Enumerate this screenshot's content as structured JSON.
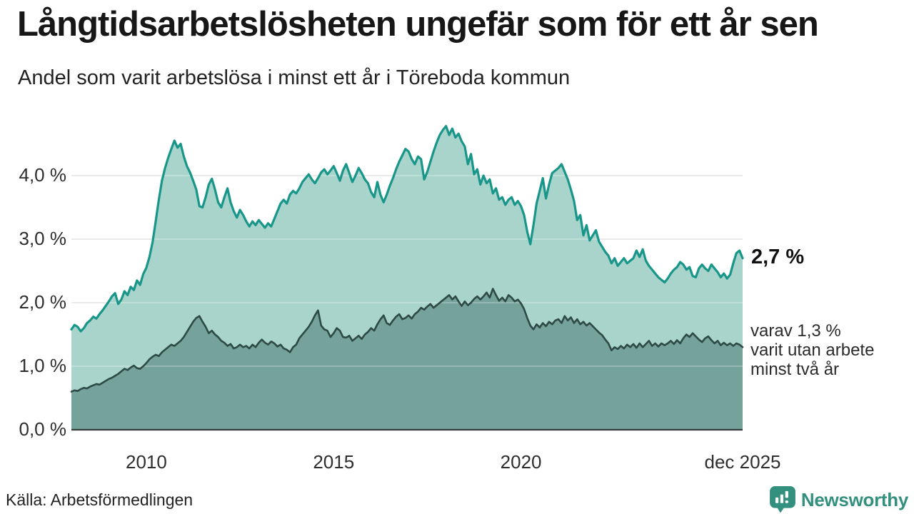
{
  "header": {
    "title": "Långtidsarbetslösheten ungefär som för ett år sen",
    "subtitle": "Andel som varit arbetslösa i minst ett år i Töreboda kommun"
  },
  "chart_data": {
    "type": "area",
    "title": "Långtidsarbetslösheten ungefär som för ett år sen",
    "subtitle": "Andel som varit arbetslösa i minst ett år i Töreboda kommun",
    "unit": "%",
    "frequency": "monthly",
    "x_range": [
      "2008-01",
      "2025-12"
    ],
    "ylim": [
      0,
      4.9
    ],
    "grid": "horizontal",
    "legend_position": "none",
    "colors": {
      "grid": "#dadada",
      "grid_overlay": "rgba(255,255,255,0.33)",
      "baseline": "#35403d"
    },
    "y_ticks": [
      {
        "label": "0,0 %",
        "value": 0.0
      },
      {
        "label": "1,0 %",
        "value": 1.0
      },
      {
        "label": "2,0 %",
        "value": 2.0
      },
      {
        "label": "3,0 %",
        "value": 3.0
      },
      {
        "label": "4,0 %",
        "value": 4.0
      }
    ],
    "x_ticks": [
      {
        "label": "2010",
        "month_index": 24
      },
      {
        "label": "2015",
        "month_index": 84
      },
      {
        "label": "2020",
        "month_index": 144
      },
      {
        "label": "dec 2025",
        "month_index": 215
      }
    ],
    "series": [
      {
        "name": "Andel arbetslösa minst ett år",
        "color": "#189689",
        "fill": "#a9d4cc",
        "end_value": 2.7,
        "values": [
          1.58,
          1.65,
          1.62,
          1.55,
          1.6,
          1.68,
          1.72,
          1.78,
          1.75,
          1.82,
          1.88,
          1.95,
          2.02,
          2.1,
          2.15,
          1.98,
          2.05,
          2.18,
          2.12,
          2.25,
          2.2,
          2.35,
          2.28,
          2.45,
          2.55,
          2.72,
          2.95,
          3.28,
          3.62,
          3.92,
          4.12,
          4.28,
          4.42,
          4.55,
          4.44,
          4.5,
          4.3,
          4.15,
          4.05,
          3.92,
          3.78,
          3.52,
          3.5,
          3.66,
          3.86,
          3.95,
          3.78,
          3.58,
          3.5,
          3.66,
          3.8,
          3.58,
          3.44,
          3.34,
          3.46,
          3.38,
          3.28,
          3.2,
          3.28,
          3.22,
          3.3,
          3.24,
          3.18,
          3.25,
          3.2,
          3.32,
          3.44,
          3.56,
          3.62,
          3.56,
          3.7,
          3.76,
          3.72,
          3.8,
          3.9,
          3.96,
          4.02,
          3.94,
          3.88,
          3.96,
          4.05,
          4.1,
          4.02,
          4.08,
          4.15,
          4.04,
          3.92,
          4.08,
          4.18,
          4.04,
          3.9,
          4.0,
          4.12,
          4.04,
          3.94,
          3.88,
          3.74,
          3.66,
          3.9,
          3.7,
          3.58,
          3.7,
          3.84,
          3.96,
          4.1,
          4.22,
          4.32,
          4.42,
          4.38,
          4.26,
          4.18,
          4.3,
          4.26,
          3.94,
          4.06,
          4.22,
          4.38,
          4.52,
          4.64,
          4.72,
          4.78,
          4.64,
          4.74,
          4.6,
          4.66,
          4.54,
          4.46,
          4.18,
          4.34,
          4.02,
          4.1,
          3.86,
          4.0,
          3.88,
          3.94,
          3.72,
          3.8,
          3.62,
          3.66,
          3.54,
          3.62,
          3.66,
          3.54,
          3.6,
          3.52,
          3.38,
          3.12,
          2.92,
          3.22,
          3.56,
          3.76,
          3.96,
          3.64,
          3.86,
          4.04,
          4.08,
          4.12,
          4.18,
          4.06,
          3.94,
          3.78,
          3.6,
          3.3,
          3.38,
          3.06,
          3.22,
          2.98,
          3.06,
          3.14,
          2.96,
          2.88,
          2.8,
          2.74,
          2.62,
          2.7,
          2.58,
          2.64,
          2.7,
          2.62,
          2.66,
          2.7,
          2.82,
          2.72,
          2.84,
          2.66,
          2.58,
          2.52,
          2.46,
          2.4,
          2.36,
          2.32,
          2.38,
          2.46,
          2.52,
          2.56,
          2.64,
          2.6,
          2.52,
          2.56,
          2.42,
          2.4,
          2.54,
          2.6,
          2.54,
          2.5,
          2.6,
          2.54,
          2.48,
          2.4,
          2.46,
          2.38,
          2.44,
          2.62,
          2.78,
          2.82,
          2.7
        ]
      },
      {
        "name": "Andel arbetslösa minst två år",
        "color": "#2d4a44",
        "fill": "#75a29a",
        "end_value": 1.3,
        "values": [
          0.6,
          0.62,
          0.61,
          0.64,
          0.66,
          0.65,
          0.68,
          0.7,
          0.72,
          0.71,
          0.74,
          0.77,
          0.8,
          0.82,
          0.85,
          0.88,
          0.92,
          0.96,
          0.94,
          0.98,
          1.01,
          0.97,
          0.96,
          1.0,
          1.05,
          1.11,
          1.15,
          1.18,
          1.16,
          1.22,
          1.26,
          1.3,
          1.34,
          1.32,
          1.36,
          1.4,
          1.46,
          1.54,
          1.62,
          1.7,
          1.76,
          1.79,
          1.7,
          1.62,
          1.52,
          1.56,
          1.5,
          1.46,
          1.4,
          1.37,
          1.32,
          1.35,
          1.28,
          1.3,
          1.34,
          1.3,
          1.32,
          1.28,
          1.34,
          1.3,
          1.37,
          1.42,
          1.37,
          1.34,
          1.39,
          1.36,
          1.31,
          1.34,
          1.28,
          1.26,
          1.22,
          1.3,
          1.34,
          1.44,
          1.5,
          1.56,
          1.62,
          1.7,
          1.8,
          1.88,
          1.64,
          1.58,
          1.56,
          1.46,
          1.52,
          1.6,
          1.56,
          1.46,
          1.45,
          1.48,
          1.4,
          1.44,
          1.48,
          1.43,
          1.5,
          1.54,
          1.6,
          1.56,
          1.66,
          1.74,
          1.8,
          1.68,
          1.65,
          1.72,
          1.78,
          1.82,
          1.74,
          1.76,
          1.8,
          1.75,
          1.82,
          1.86,
          1.92,
          1.89,
          1.94,
          1.98,
          1.92,
          1.96,
          2.0,
          2.04,
          2.08,
          2.12,
          2.05,
          2.1,
          2.02,
          1.95,
          2.02,
          1.96,
          2.0,
          2.06,
          2.1,
          2.05,
          2.1,
          2.16,
          2.08,
          2.22,
          2.12,
          2.03,
          2.08,
          2.02,
          2.12,
          2.08,
          2.02,
          2.05,
          1.99,
          1.9,
          1.76,
          1.64,
          1.58,
          1.66,
          1.61,
          1.68,
          1.63,
          1.7,
          1.66,
          1.72,
          1.74,
          1.68,
          1.79,
          1.72,
          1.77,
          1.68,
          1.74,
          1.66,
          1.7,
          1.64,
          1.68,
          1.63,
          1.58,
          1.53,
          1.49,
          1.42,
          1.36,
          1.25,
          1.3,
          1.27,
          1.32,
          1.28,
          1.34,
          1.3,
          1.35,
          1.29,
          1.36,
          1.3,
          1.35,
          1.4,
          1.32,
          1.36,
          1.31,
          1.36,
          1.33,
          1.36,
          1.4,
          1.35,
          1.41,
          1.36,
          1.44,
          1.5,
          1.46,
          1.52,
          1.47,
          1.42,
          1.38,
          1.44,
          1.47,
          1.41,
          1.36,
          1.4,
          1.33,
          1.37,
          1.33,
          1.36,
          1.32,
          1.36,
          1.34,
          1.3
        ]
      }
    ],
    "annotations": {
      "primary": "2,7 %",
      "secondary_lines": [
        "varav 1,3 %",
        "varit utan arbete",
        "minst två år"
      ]
    }
  },
  "footer": {
    "source": "Källa: Arbetsförmedlingen",
    "brand": "Newsworthy"
  }
}
